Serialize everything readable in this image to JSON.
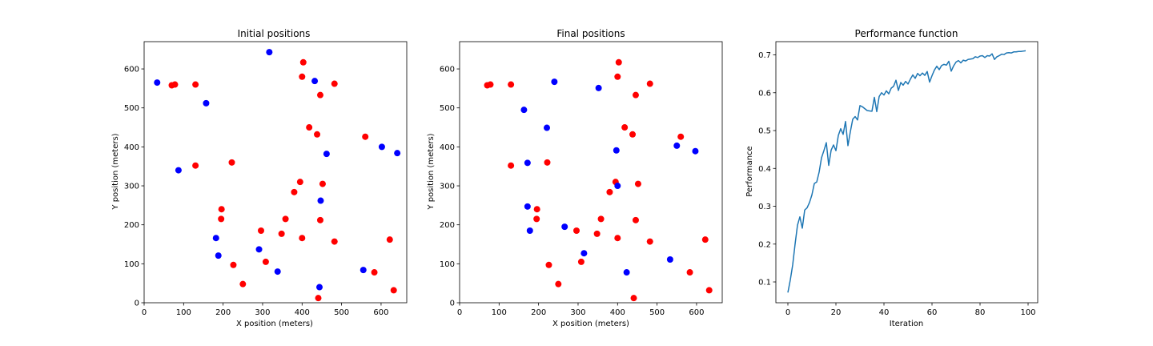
{
  "colors": {
    "red": "#ff0000",
    "blue": "#0000ff",
    "line": "#1f77b4"
  },
  "chart_data": [
    {
      "type": "scatter",
      "title": "Initial positions",
      "xlabel": "X position (meters)",
      "ylabel": "Y position (meters)",
      "xlim": [
        0,
        665
      ],
      "ylim": [
        0,
        670
      ],
      "xticks": [
        0,
        100,
        200,
        300,
        400,
        500,
        600
      ],
      "yticks": [
        0,
        100,
        200,
        300,
        400,
        500,
        600
      ],
      "series": [
        {
          "color": "red",
          "points": [
            [
              70,
              558
            ],
            [
              78,
              560
            ],
            [
              130,
              560
            ],
            [
              130,
              352
            ],
            [
              222,
              360
            ],
            [
              196,
              240
            ],
            [
              195,
              215
            ],
            [
              226,
              97
            ],
            [
              250,
              48
            ],
            [
              296,
              185
            ],
            [
              308,
              105
            ],
            [
              348,
              177
            ],
            [
              358,
              215
            ],
            [
              380,
              284
            ],
            [
              395,
              310
            ],
            [
              400,
              166
            ],
            [
              400,
              580
            ],
            [
              403,
              617
            ],
            [
              418,
              450
            ],
            [
              438,
              432
            ],
            [
              446,
              533
            ],
            [
              446,
              212
            ],
            [
              452,
              305
            ],
            [
              482,
              562
            ],
            [
              482,
              157
            ],
            [
              560,
              426
            ],
            [
              583,
              78
            ],
            [
              622,
              162
            ],
            [
              632,
              32
            ],
            [
              441,
              12
            ]
          ]
        },
        {
          "color": "blue",
          "points": [
            [
              33,
              565
            ],
            [
              87,
              340
            ],
            [
              157,
              512
            ],
            [
              182,
              166
            ],
            [
              188,
              121
            ],
            [
              291,
              137
            ],
            [
              317,
              643
            ],
            [
              338,
              80
            ],
            [
              432,
              569
            ],
            [
              447,
              262
            ],
            [
              444,
              40
            ],
            [
              462,
              382
            ],
            [
              555,
              84
            ],
            [
              602,
              400
            ],
            [
              641,
              384
            ]
          ]
        }
      ]
    },
    {
      "type": "scatter",
      "title": "Final positions",
      "xlabel": "X position (meters)",
      "ylabel": "Y position (meters)",
      "xlim": [
        0,
        665
      ],
      "ylim": [
        0,
        670
      ],
      "xticks": [
        0,
        100,
        200,
        300,
        400,
        500,
        600
      ],
      "yticks": [
        0,
        100,
        200,
        300,
        400,
        500,
        600
      ],
      "series": [
        {
          "color": "red",
          "points": [
            [
              70,
              558
            ],
            [
              78,
              560
            ],
            [
              130,
              560
            ],
            [
              130,
              352
            ],
            [
              222,
              360
            ],
            [
              196,
              240
            ],
            [
              195,
              215
            ],
            [
              226,
              97
            ],
            [
              250,
              48
            ],
            [
              296,
              185
            ],
            [
              308,
              105
            ],
            [
              348,
              177
            ],
            [
              358,
              215
            ],
            [
              380,
              284
            ],
            [
              395,
              310
            ],
            [
              400,
              166
            ],
            [
              400,
              580
            ],
            [
              403,
              617
            ],
            [
              418,
              450
            ],
            [
              438,
              432
            ],
            [
              446,
              533
            ],
            [
              446,
              212
            ],
            [
              452,
              305
            ],
            [
              482,
              562
            ],
            [
              482,
              157
            ],
            [
              560,
              426
            ],
            [
              583,
              78
            ],
            [
              622,
              162
            ],
            [
              632,
              32
            ],
            [
              441,
              12
            ]
          ]
        },
        {
          "color": "blue",
          "points": [
            [
              240,
              567
            ],
            [
              352,
              551
            ],
            [
              163,
              495
            ],
            [
              221,
              449
            ],
            [
              172,
              359
            ],
            [
              172,
              247
            ],
            [
              178,
              185
            ],
            [
              266,
              195
            ],
            [
              315,
              127
            ],
            [
              397,
              391
            ],
            [
              400,
              300
            ],
            [
              423,
              78
            ],
            [
              533,
              111
            ],
            [
              550,
              403
            ],
            [
              597,
              389
            ]
          ]
        }
      ]
    },
    {
      "type": "line",
      "title": "Performance function",
      "xlabel": "Iteration",
      "ylabel": "Performance",
      "xlim": [
        -5,
        104
      ],
      "ylim": [
        0.045,
        0.735
      ],
      "xticks": [
        0,
        20,
        40,
        60,
        80,
        100
      ],
      "yticks": [
        0.1,
        0.2,
        0.3,
        0.4,
        0.5,
        0.6,
        0.7
      ],
      "x_start": 0,
      "values": [
        0.072,
        0.105,
        0.145,
        0.2,
        0.25,
        0.272,
        0.242,
        0.29,
        0.296,
        0.31,
        0.33,
        0.36,
        0.364,
        0.39,
        0.428,
        0.447,
        0.468,
        0.408,
        0.448,
        0.462,
        0.447,
        0.487,
        0.505,
        0.49,
        0.524,
        0.46,
        0.497,
        0.53,
        0.537,
        0.528,
        0.566,
        0.563,
        0.558,
        0.553,
        0.552,
        0.551,
        0.588,
        0.55,
        0.59,
        0.6,
        0.594,
        0.605,
        0.597,
        0.612,
        0.617,
        0.633,
        0.606,
        0.627,
        0.62,
        0.63,
        0.623,
        0.636,
        0.647,
        0.638,
        0.651,
        0.645,
        0.652,
        0.646,
        0.656,
        0.628,
        0.645,
        0.66,
        0.67,
        0.661,
        0.672,
        0.675,
        0.673,
        0.683,
        0.657,
        0.671,
        0.681,
        0.685,
        0.679,
        0.686,
        0.684,
        0.688,
        0.689,
        0.69,
        0.695,
        0.693,
        0.697,
        0.698,
        0.693,
        0.698,
        0.697,
        0.703,
        0.688,
        0.695,
        0.698,
        0.702,
        0.701,
        0.705,
        0.706,
        0.705,
        0.708,
        0.708,
        0.709,
        0.709,
        0.71,
        0.711
      ]
    }
  ]
}
